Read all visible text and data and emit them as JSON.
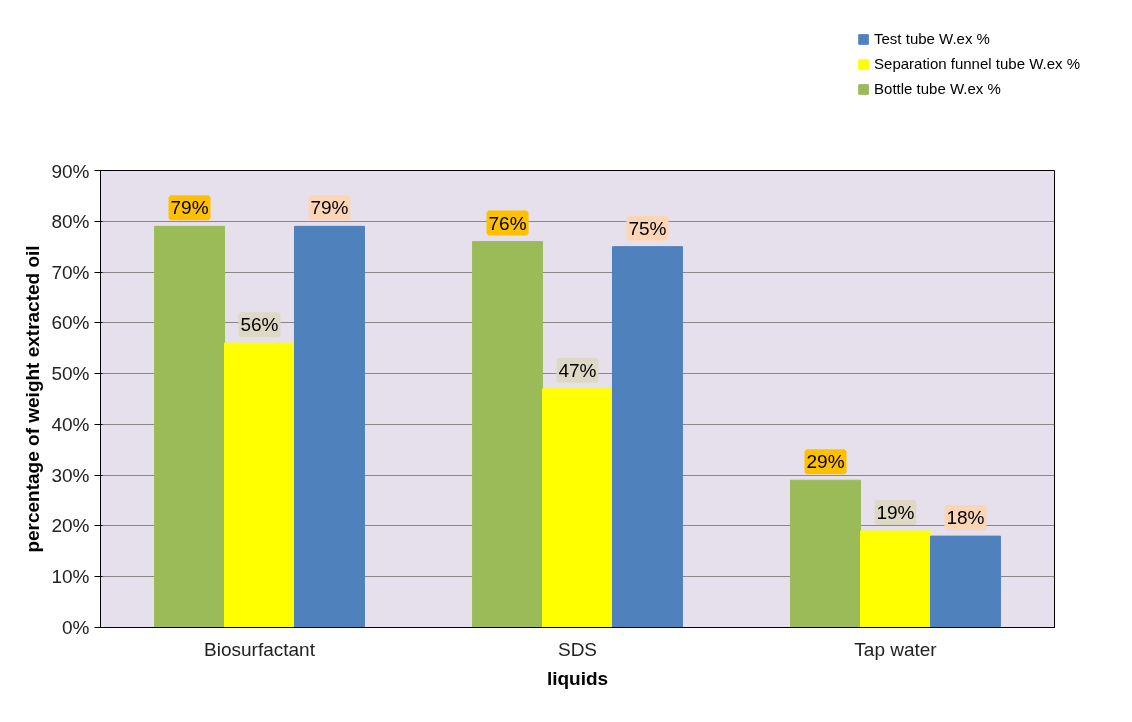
{
  "chart_data": {
    "type": "bar",
    "xlabel": "liquids",
    "ylabel": "percentage of weight extracted oil",
    "categories": [
      "Biosurfactant",
      "SDS",
      "Tap water"
    ],
    "series": [
      {
        "name": "Bottle tube W.ex %",
        "color": "#9bbb59",
        "values": [
          79,
          76,
          29
        ],
        "value_labels": [
          "79%",
          "76%",
          "29%"
        ]
      },
      {
        "name": "Separation funnel tube W.ex %",
        "color": "#ffff00",
        "values": [
          56,
          47,
          19
        ],
        "value_labels": [
          "56%",
          "47%",
          "19%"
        ]
      },
      {
        "name": "Test tube W.ex %",
        "color": "#4f81bd",
        "values": [
          79,
          75,
          18
        ],
        "value_labels": [
          "79%",
          "75%",
          "18%"
        ]
      }
    ],
    "ylim": [
      0,
      90
    ],
    "yticks": [
      {
        "value": 0,
        "label": "0%"
      },
      {
        "value": 10,
        "label": "10%"
      },
      {
        "value": 20,
        "label": "20%"
      },
      {
        "value": 30,
        "label": "30%"
      },
      {
        "value": 40,
        "label": "40%"
      },
      {
        "value": 50,
        "label": "50%"
      },
      {
        "value": 60,
        "label": "60%"
      },
      {
        "value": 70,
        "label": "70%"
      },
      {
        "value": 80,
        "label": "80%"
      },
      {
        "value": 90,
        "label": "90%"
      }
    ],
    "grid": "y",
    "legend": "top right"
  }
}
